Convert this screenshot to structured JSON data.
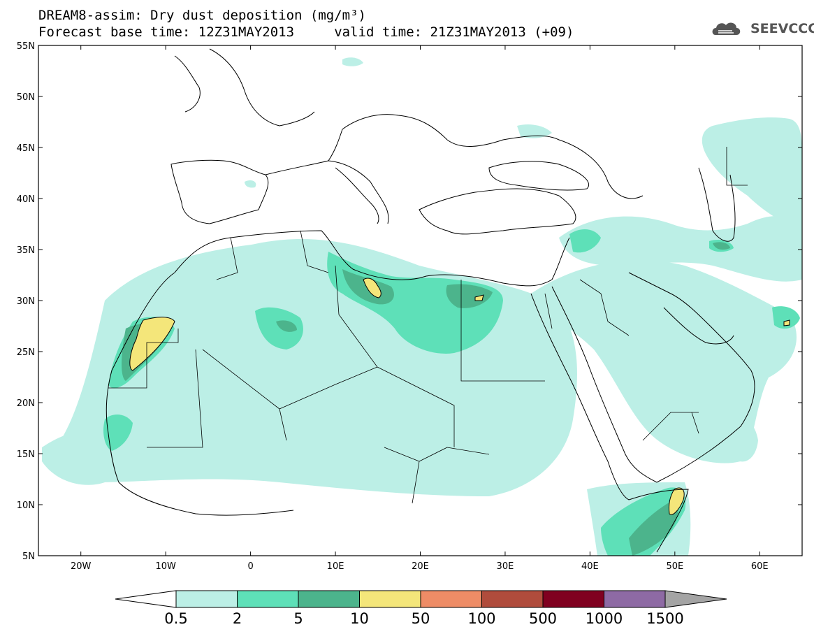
{
  "header": {
    "title_line1": "DREAM8-assim: Dry dust deposition (mg/m³)",
    "title_line2": "Forecast base time: 12Z31MAY2013     valid time: 21Z31MAY2013 (+09)",
    "logo_text": "SEEVCCC"
  },
  "map": {
    "lat_labels": [
      "55N",
      "50N",
      "45N",
      "40N",
      "35N",
      "30N",
      "25N",
      "20N",
      "15N",
      "10N",
      "5N"
    ],
    "lon_labels": [
      "20W",
      "10W",
      "0",
      "10E",
      "20E",
      "30E",
      "40E",
      "50E",
      "60E"
    ],
    "extent": {
      "lon": [
        -25,
        65
      ],
      "lat": [
        5,
        55
      ]
    }
  },
  "colorbar": {
    "labels": [
      "0.5",
      "2",
      "5",
      "10",
      "50",
      "100",
      "500",
      "1000",
      "1500"
    ],
    "colors": [
      "#ffffff",
      "#bcefe6",
      "#5ee0b8",
      "#4cb48c",
      "#f4e67a",
      "#ee8c66",
      "#b04c3c",
      "#800020",
      "#8e6aa4",
      "#a4a4a4"
    ]
  },
  "chart_data": {
    "type": "heatmap",
    "title": "DREAM8-assim: Dry dust deposition (mg/m³)",
    "units": "mg/m³",
    "levels": [
      0.5,
      2,
      5,
      10,
      50,
      100,
      500,
      1000,
      1500
    ],
    "xlim": [
      -25,
      65
    ],
    "ylim": [
      5,
      55
    ]
  }
}
